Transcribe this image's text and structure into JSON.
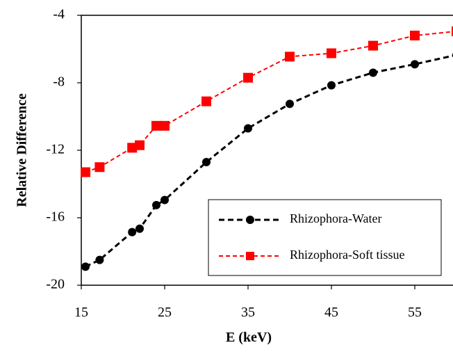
{
  "chart_data": {
    "type": "line",
    "title": "",
    "xlabel": "E (keV)",
    "ylabel": "Relative Difference",
    "xlim": [
      15,
      60
    ],
    "ylim": [
      -20,
      -4
    ],
    "x_ticks": [
      15,
      25,
      35,
      45,
      55
    ],
    "y_ticks": [
      -20,
      -16,
      -12,
      -8,
      -4
    ],
    "grid": false,
    "legend_position": "bottom-right",
    "series": [
      {
        "name": "Rhizophora-Water",
        "color": "#000000",
        "marker": "circle",
        "line_style": "dashed",
        "x": [
          15.5,
          17.2,
          21.1,
          22,
          24,
          25,
          30,
          35,
          40,
          45,
          50,
          55,
          60
        ],
        "y": [
          -18.9,
          -18.5,
          -16.85,
          -16.65,
          -15.25,
          -14.95,
          -12.7,
          -10.7,
          -9.25,
          -8.15,
          -7.4,
          -6.9,
          -6.35
        ]
      },
      {
        "name": "Rhizophora-Soft tissue",
        "color": "#ff0000",
        "marker": "square",
        "line_style": "dashed",
        "x": [
          15.5,
          17.2,
          21.1,
          22,
          24,
          25,
          30,
          35,
          40,
          45,
          50,
          55,
          60
        ],
        "y": [
          -13.3,
          -13,
          -11.85,
          -11.7,
          -10.55,
          -10.55,
          -9.1,
          -7.7,
          -6.45,
          -6.25,
          -5.8,
          -5.2,
          -4.95
        ]
      }
    ]
  }
}
